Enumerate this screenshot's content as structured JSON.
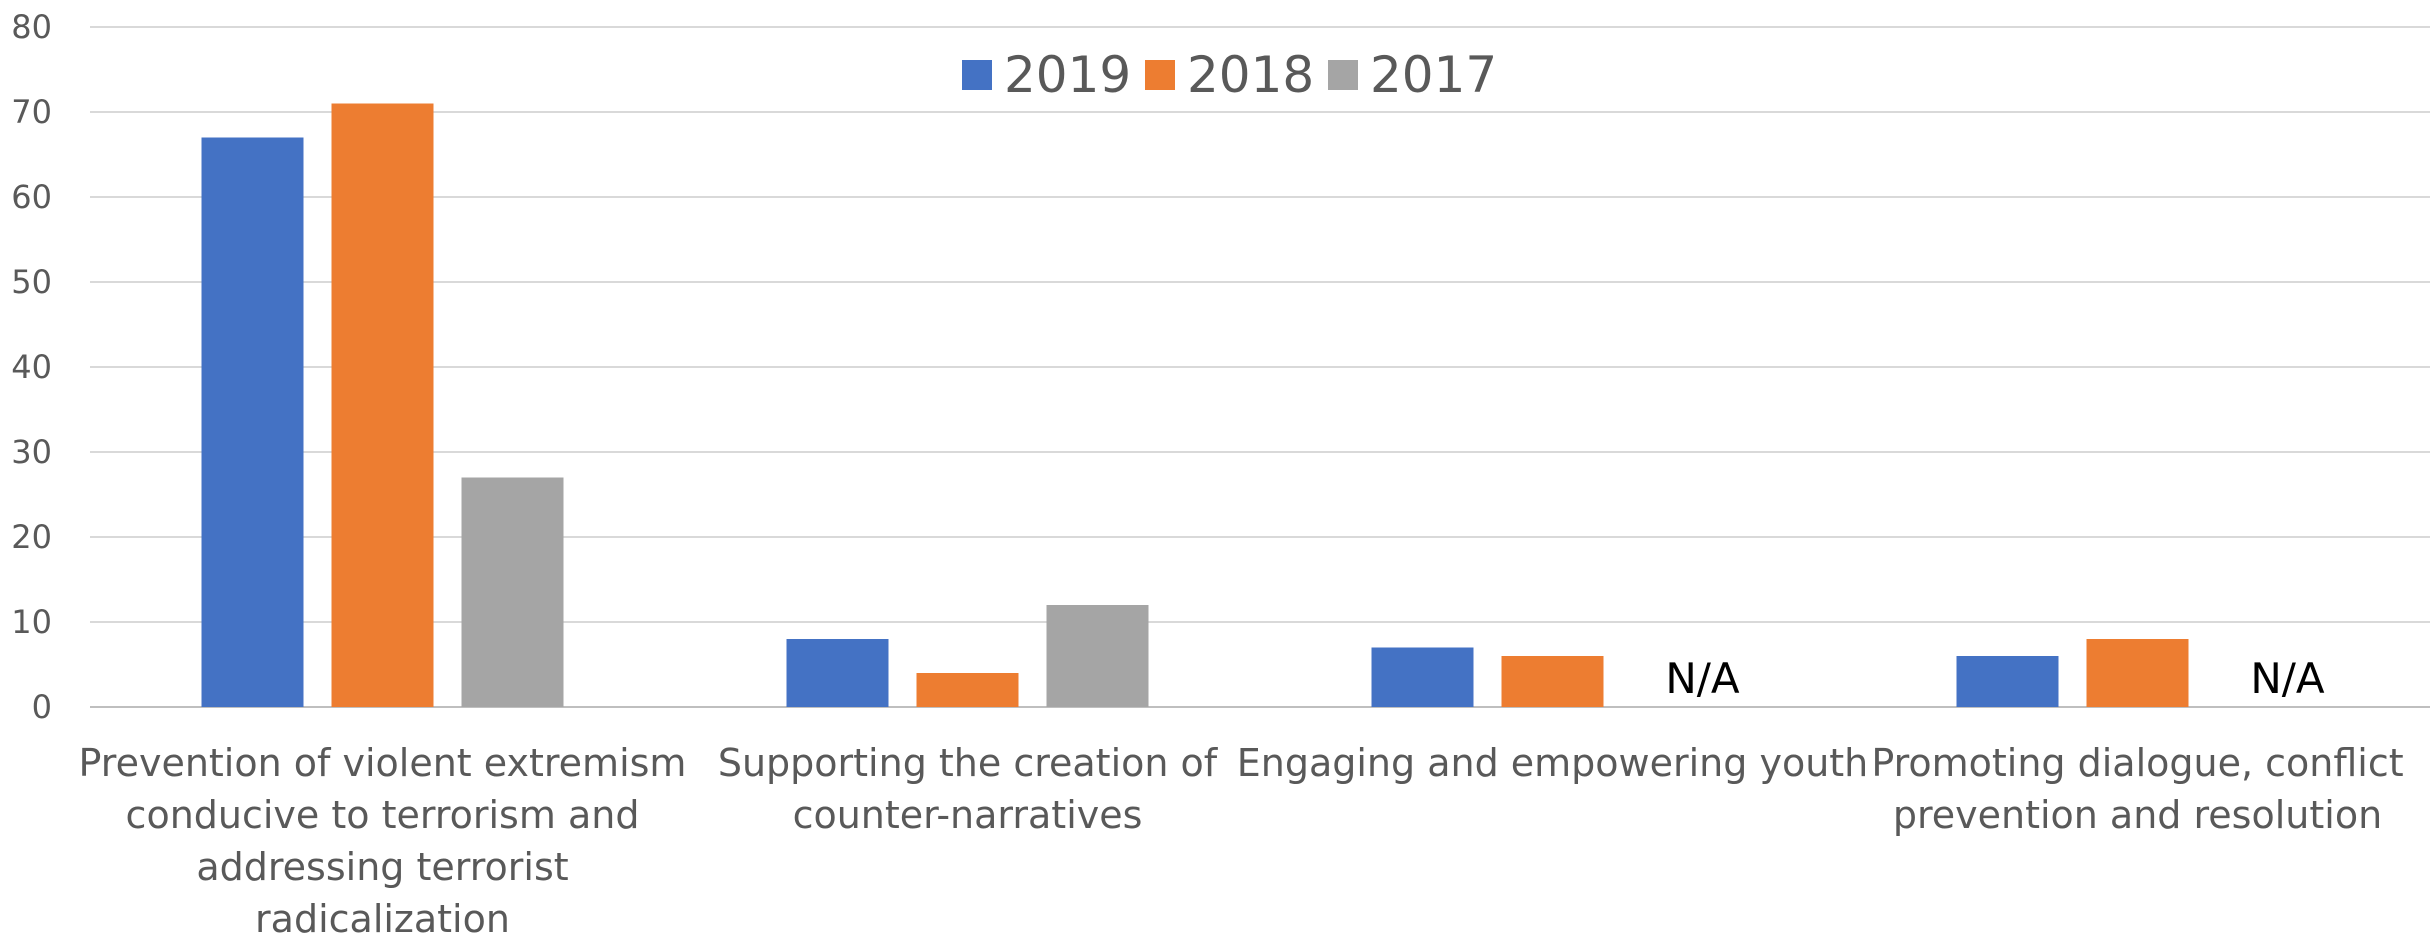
{
  "chart_data": {
    "type": "bar",
    "title": "",
    "xlabel": "",
    "ylabel": "",
    "ylim": [
      0,
      80
    ],
    "yticks": [
      "0",
      "10",
      "20",
      "30",
      "40",
      "50",
      "60",
      "70",
      "80"
    ],
    "grid": true,
    "legend_position": "top-center",
    "categories": [
      [
        "Prevention of violent extremism",
        "conducive to terrorism and",
        "addressing terrorist",
        "radicalization"
      ],
      [
        "Supporting the creation of",
        "counter-narratives"
      ],
      [
        "Engaging and empowering youth"
      ],
      [
        "Promoting dialogue, conflict",
        "prevention and resolution"
      ]
    ],
    "series": [
      {
        "name": "2019",
        "color": "#4472c4",
        "values": [
          67,
          8,
          7,
          6
        ]
      },
      {
        "name": "2018",
        "color": "#ed7d31",
        "values": [
          71,
          4,
          6,
          8
        ]
      },
      {
        "name": "2017",
        "color": "#a5a5a5",
        "values": [
          27,
          12,
          null,
          null
        ]
      }
    ],
    "missing_label": "N/A"
  }
}
